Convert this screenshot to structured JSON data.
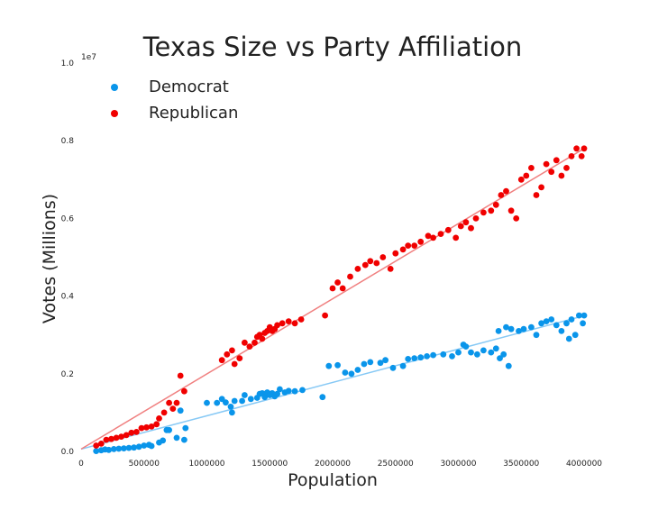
{
  "chart_data": {
    "type": "scatter",
    "title": "Texas Size vs Party Affiliation",
    "xlabel": "Population",
    "ylabel": "Votes (Millions)",
    "y_offset_label": "1e7",
    "xlim": [
      0,
      4000000
    ],
    "ylim": [
      0,
      10000000
    ],
    "x_ticks": [
      0,
      500000,
      1000000,
      1500000,
      2000000,
      2500000,
      3000000,
      3500000,
      4000000
    ],
    "x_tick_labels": [
      "0",
      "500000",
      "1000000",
      "1500000",
      "2000000",
      "2500000",
      "3000000",
      "3500000",
      "4000000"
    ],
    "y_ticks": [
      0,
      2000000,
      4000000,
      6000000,
      8000000,
      10000000
    ],
    "y_tick_labels": [
      "0.0",
      "0.2",
      "0.4",
      "0.6",
      "0.8",
      "1.0"
    ],
    "grid": false,
    "legend_position": "top-left",
    "series": [
      {
        "name": "Democrat",
        "color": "#0a95ea",
        "trend_color": "#87c9f5",
        "trend_line": [
          [
            0,
            60000
          ],
          [
            3950000,
            3450000
          ]
        ],
        "points": [
          [
            120000,
            10000
          ],
          [
            160000,
            30000
          ],
          [
            190000,
            50000
          ],
          [
            220000,
            40000
          ],
          [
            260000,
            60000
          ],
          [
            300000,
            70000
          ],
          [
            340000,
            80000
          ],
          [
            380000,
            90000
          ],
          [
            420000,
            100000
          ],
          [
            460000,
            120000
          ],
          [
            500000,
            150000
          ],
          [
            540000,
            170000
          ],
          [
            560000,
            140000
          ],
          [
            620000,
            230000
          ],
          [
            650000,
            280000
          ],
          [
            680000,
            550000
          ],
          [
            700000,
            550000
          ],
          [
            760000,
            350000
          ],
          [
            790000,
            1050000
          ],
          [
            820000,
            300000
          ],
          [
            830000,
            600000
          ],
          [
            1000000,
            1250000
          ],
          [
            1080000,
            1250000
          ],
          [
            1120000,
            1350000
          ],
          [
            1150000,
            1260000
          ],
          [
            1190000,
            1150000
          ],
          [
            1200000,
            1000000
          ],
          [
            1220000,
            1300000
          ],
          [
            1280000,
            1300000
          ],
          [
            1300000,
            1450000
          ],
          [
            1350000,
            1350000
          ],
          [
            1400000,
            1380000
          ],
          [
            1420000,
            1480000
          ],
          [
            1440000,
            1500000
          ],
          [
            1460000,
            1400000
          ],
          [
            1480000,
            1520000
          ],
          [
            1500000,
            1450000
          ],
          [
            1520000,
            1500000
          ],
          [
            1540000,
            1420000
          ],
          [
            1560000,
            1480000
          ],
          [
            1580000,
            1600000
          ],
          [
            1620000,
            1520000
          ],
          [
            1650000,
            1560000
          ],
          [
            1700000,
            1550000
          ],
          [
            1760000,
            1580000
          ],
          [
            1920000,
            1400000
          ],
          [
            1970000,
            2200000
          ],
          [
            2040000,
            2220000
          ],
          [
            2100000,
            2030000
          ],
          [
            2150000,
            2000000
          ],
          [
            2200000,
            2100000
          ],
          [
            2250000,
            2250000
          ],
          [
            2300000,
            2300000
          ],
          [
            2380000,
            2280000
          ],
          [
            2420000,
            2350000
          ],
          [
            2480000,
            2150000
          ],
          [
            2560000,
            2200000
          ],
          [
            2600000,
            2380000
          ],
          [
            2650000,
            2400000
          ],
          [
            2700000,
            2420000
          ],
          [
            2750000,
            2450000
          ],
          [
            2800000,
            2480000
          ],
          [
            2880000,
            2500000
          ],
          [
            2950000,
            2450000
          ],
          [
            3000000,
            2550000
          ],
          [
            3040000,
            2750000
          ],
          [
            3060000,
            2700000
          ],
          [
            3100000,
            2550000
          ],
          [
            3150000,
            2500000
          ],
          [
            3200000,
            2600000
          ],
          [
            3260000,
            2550000
          ],
          [
            3300000,
            2650000
          ],
          [
            3330000,
            2400000
          ],
          [
            3360000,
            2500000
          ],
          [
            3400000,
            2200000
          ],
          [
            3320000,
            3100000
          ],
          [
            3380000,
            3200000
          ],
          [
            3420000,
            3150000
          ],
          [
            3480000,
            3100000
          ],
          [
            3520000,
            3150000
          ],
          [
            3580000,
            3200000
          ],
          [
            3620000,
            3000000
          ],
          [
            3660000,
            3300000
          ],
          [
            3700000,
            3350000
          ],
          [
            3740000,
            3400000
          ],
          [
            3780000,
            3250000
          ],
          [
            3820000,
            3100000
          ],
          [
            3860000,
            3300000
          ],
          [
            3880000,
            2900000
          ],
          [
            3900000,
            3400000
          ],
          [
            3930000,
            3000000
          ],
          [
            3960000,
            3500000
          ],
          [
            3990000,
            3300000
          ],
          [
            4000000,
            3500000
          ]
        ]
      },
      {
        "name": "Republican",
        "color": "#f00000",
        "trend_color": "#f08080",
        "trend_line": [
          [
            0,
            60000
          ],
          [
            4000000,
            7800000
          ]
        ],
        "points": [
          [
            120000,
            150000
          ],
          [
            160000,
            200000
          ],
          [
            200000,
            300000
          ],
          [
            240000,
            320000
          ],
          [
            280000,
            350000
          ],
          [
            320000,
            380000
          ],
          [
            360000,
            420000
          ],
          [
            400000,
            480000
          ],
          [
            440000,
            500000
          ],
          [
            480000,
            600000
          ],
          [
            520000,
            620000
          ],
          [
            560000,
            640000
          ],
          [
            600000,
            700000
          ],
          [
            620000,
            850000
          ],
          [
            660000,
            1000000
          ],
          [
            700000,
            1250000
          ],
          [
            730000,
            1100000
          ],
          [
            760000,
            1250000
          ],
          [
            790000,
            1950000
          ],
          [
            820000,
            1550000
          ],
          [
            1120000,
            2350000
          ],
          [
            1160000,
            2500000
          ],
          [
            1200000,
            2600000
          ],
          [
            1220000,
            2250000
          ],
          [
            1260000,
            2400000
          ],
          [
            1300000,
            2800000
          ],
          [
            1340000,
            2700000
          ],
          [
            1380000,
            2800000
          ],
          [
            1400000,
            2950000
          ],
          [
            1420000,
            3000000
          ],
          [
            1440000,
            2900000
          ],
          [
            1460000,
            3050000
          ],
          [
            1480000,
            3100000
          ],
          [
            1500000,
            3200000
          ],
          [
            1520000,
            3100000
          ],
          [
            1540000,
            3150000
          ],
          [
            1560000,
            3250000
          ],
          [
            1600000,
            3300000
          ],
          [
            1650000,
            3350000
          ],
          [
            1700000,
            3300000
          ],
          [
            1750000,
            3400000
          ],
          [
            1940000,
            3500000
          ],
          [
            2000000,
            4200000
          ],
          [
            2040000,
            4350000
          ],
          [
            2080000,
            4200000
          ],
          [
            2140000,
            4500000
          ],
          [
            2200000,
            4700000
          ],
          [
            2260000,
            4800000
          ],
          [
            2300000,
            4900000
          ],
          [
            2350000,
            4850000
          ],
          [
            2400000,
            5000000
          ],
          [
            2460000,
            4700000
          ],
          [
            2500000,
            5100000
          ],
          [
            2560000,
            5200000
          ],
          [
            2600000,
            5300000
          ],
          [
            2650000,
            5300000
          ],
          [
            2700000,
            5400000
          ],
          [
            2760000,
            5550000
          ],
          [
            2800000,
            5500000
          ],
          [
            2860000,
            5600000
          ],
          [
            2920000,
            5700000
          ],
          [
            2980000,
            5500000
          ],
          [
            3020000,
            5800000
          ],
          [
            3060000,
            5900000
          ],
          [
            3100000,
            5750000
          ],
          [
            3140000,
            6000000
          ],
          [
            3200000,
            6150000
          ],
          [
            3260000,
            6200000
          ],
          [
            3300000,
            6350000
          ],
          [
            3340000,
            6600000
          ],
          [
            3380000,
            6700000
          ],
          [
            3420000,
            6200000
          ],
          [
            3460000,
            6000000
          ],
          [
            3500000,
            7000000
          ],
          [
            3540000,
            7100000
          ],
          [
            3580000,
            7300000
          ],
          [
            3620000,
            6600000
          ],
          [
            3660000,
            6800000
          ],
          [
            3700000,
            7400000
          ],
          [
            3740000,
            7200000
          ],
          [
            3780000,
            7500000
          ],
          [
            3820000,
            7100000
          ],
          [
            3860000,
            7300000
          ],
          [
            3900000,
            7600000
          ],
          [
            3940000,
            7800000
          ],
          [
            3980000,
            7600000
          ],
          [
            4000000,
            7800000
          ]
        ]
      }
    ]
  }
}
